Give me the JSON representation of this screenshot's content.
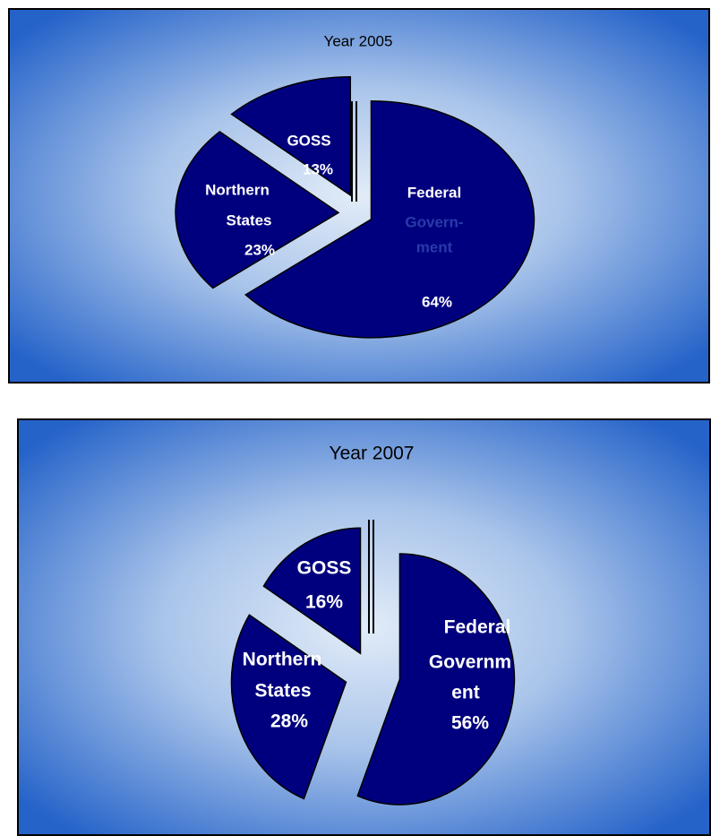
{
  "chart_data": [
    {
      "type": "pie",
      "title": "Year 2005",
      "categories": [
        [
          "Federal",
          "Govern-",
          "ment"
        ],
        [
          "Northern",
          "States"
        ],
        [
          "GOSS"
        ]
      ],
      "values": [
        64,
        23,
        13
      ],
      "value_labels": [
        "64%",
        "23%",
        "13%"
      ],
      "color": "#00007f"
    },
    {
      "type": "pie",
      "title": "Year 2007",
      "categories": [
        [
          "Federal",
          "Governm",
          "ent"
        ],
        [
          "Northern",
          "States"
        ],
        [
          "GOSS"
        ]
      ],
      "values": [
        56,
        28,
        16
      ],
      "value_labels": [
        "56%",
        "28%",
        "16%"
      ],
      "color": "#00007f"
    }
  ]
}
